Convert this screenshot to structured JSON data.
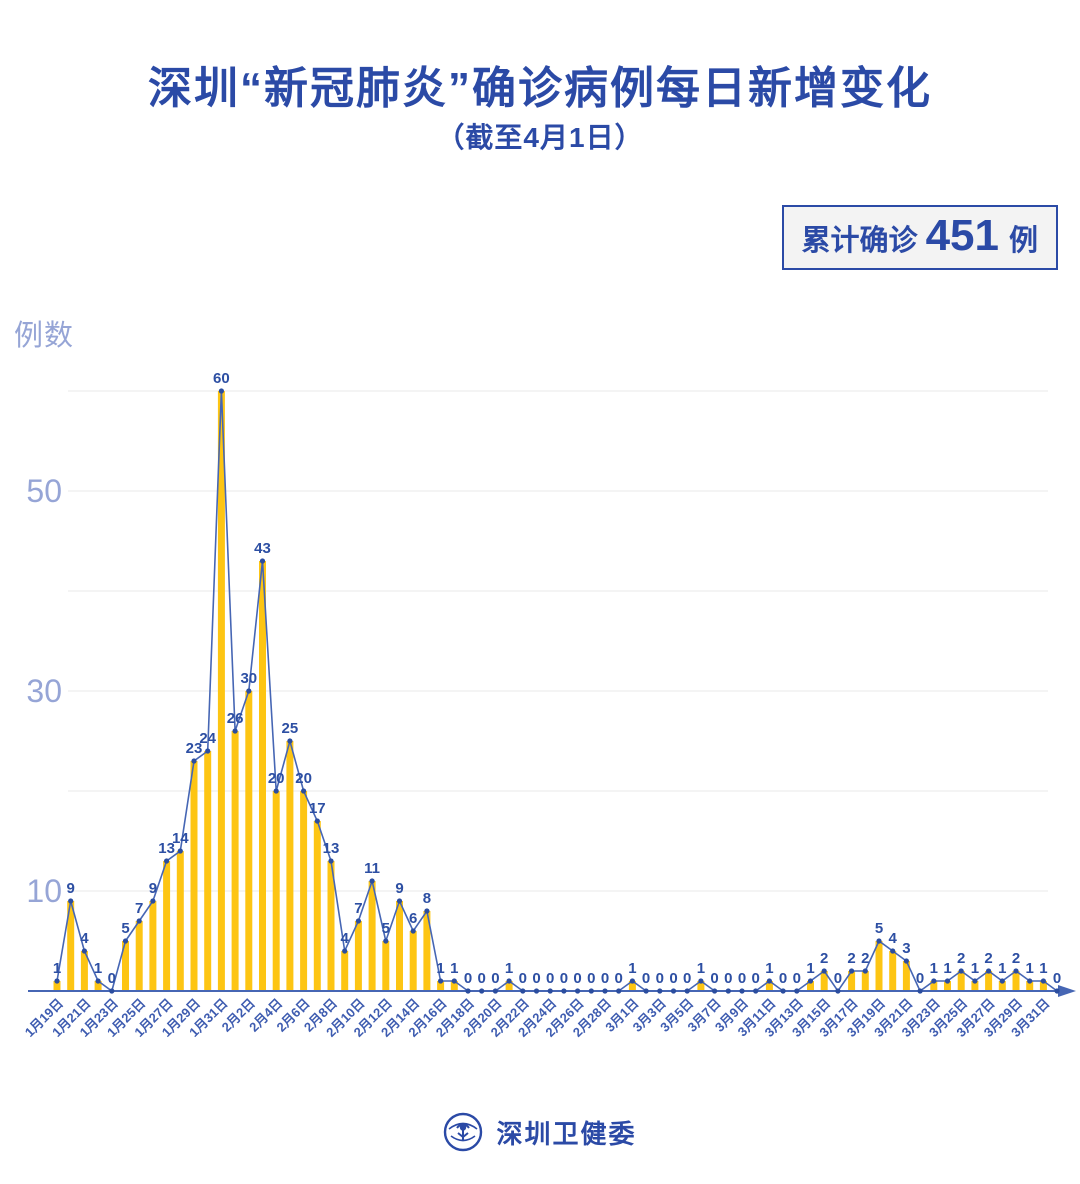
{
  "page": {
    "title": "深圳“新冠肺炎”确诊病例每日新增变化",
    "subtitle": "（截至4月1日）",
    "badge": {
      "prefix": "累计确诊",
      "number": "451",
      "suffix": "例"
    },
    "footer": {
      "org": "深圳卫健委"
    }
  },
  "colors": {
    "accent_blue": "#2B4AA6",
    "line_blue": "#4666B4",
    "marker_blue": "#2B4D9F",
    "value_label_blue": "#2D4FA3",
    "date_label_blue": "#3E5CB0",
    "axis_light_blue": "#96A5D6",
    "bar_yellow": "#FDC513",
    "gridline_gray": "#E9E9E9",
    "badge_bg": "#F3F3F3"
  },
  "chart_data": {
    "type": "bar",
    "title": "深圳“新冠肺炎”确诊病例每日新增变化（截至4月1日）",
    "subtitle_note": "累计确诊451例",
    "xlabel": "",
    "ylabel": "例数",
    "ylim": [
      0,
      60
    ],
    "yticks": [
      10,
      30,
      50
    ],
    "gridlines": [
      10,
      20,
      30,
      40,
      50,
      60
    ],
    "grid": true,
    "legend": "none",
    "x_tick_every": 2,
    "x_first_date": "1月19日",
    "x_last_date": "4月1日",
    "x_tick_labels": [
      "1月19日",
      "1月21日",
      "1月23日",
      "1月25日",
      "1月27日",
      "1月29日",
      "1月31日",
      "2月2日",
      "2月4日",
      "2月6日",
      "2月8日",
      "2月10日",
      "2月12日",
      "2月14日",
      "2月16日",
      "2月18日",
      "2月20日",
      "2月22日",
      "2月24日",
      "2月26日",
      "2月28日",
      "3月1日",
      "3月3日",
      "3月5日",
      "3月7日",
      "3月9日",
      "3月11日",
      "3月13日",
      "3月15日",
      "3月17日",
      "3月19日",
      "3月21日",
      "3月23日",
      "3月25日",
      "3月27日",
      "3月29日",
      "3月31日"
    ],
    "values": [
      1,
      9,
      4,
      1,
      0,
      5,
      7,
      9,
      13,
      14,
      23,
      24,
      60,
      26,
      30,
      43,
      20,
      25,
      20,
      17,
      13,
      4,
      7,
      11,
      5,
      9,
      6,
      8,
      1,
      1,
      0,
      0,
      0,
      1,
      0,
      0,
      0,
      0,
      0,
      0,
      0,
      0,
      1,
      0,
      0,
      0,
      0,
      1,
      0,
      0,
      0,
      0,
      1,
      0,
      0,
      1,
      2,
      0,
      2,
      2,
      5,
      4,
      3,
      0,
      1,
      1,
      2,
      1,
      2,
      1,
      2,
      1,
      1,
      0
    ]
  }
}
